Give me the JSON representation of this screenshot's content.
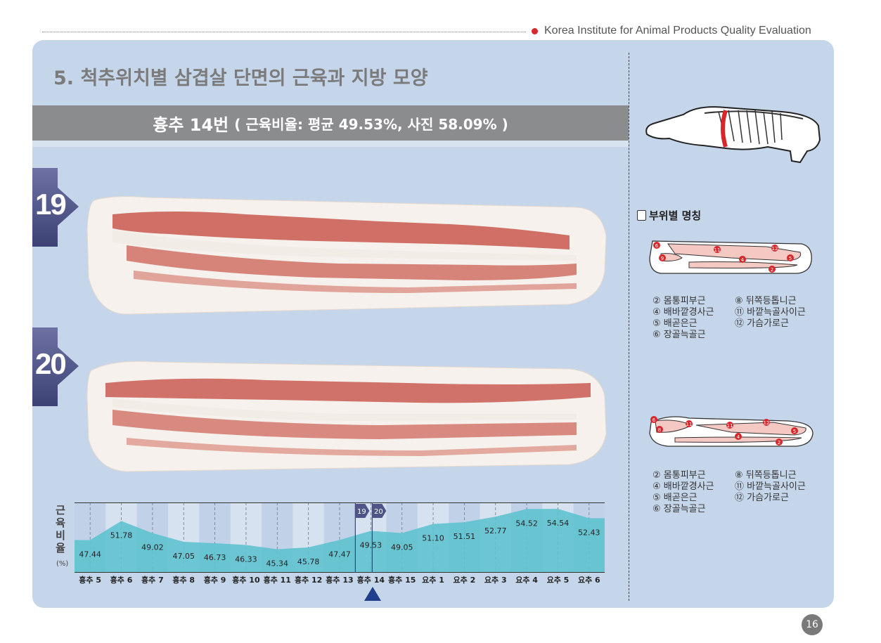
{
  "header": {
    "organization": "Korea Institute for Animal Products Quality Evaluation"
  },
  "title": "5. 척추위치별 삼겹살 단면의 근육과 지방 모양",
  "banner": {
    "main": "흉추 14번",
    "sub": "( 근육비율: 평균 49.53%, 사진 58.09% )"
  },
  "photos": [
    {
      "number": "19"
    },
    {
      "number": "20"
    }
  ],
  "chart_data": {
    "type": "area",
    "ylabel": "근육비율",
    "yunit": "(%)",
    "categories": [
      "흉추 5",
      "흉추 6",
      "흉추 7",
      "흉추 8",
      "흉추 9",
      "흉추 10",
      "흉추 11",
      "흉추 12",
      "흉추 13",
      "흉추 14",
      "흉추 15",
      "요추 1",
      "요추 2",
      "요추 3",
      "요추 4",
      "요추 5",
      "요추 6"
    ],
    "values": [
      47.44,
      51.78,
      49.02,
      47.05,
      46.73,
      46.33,
      45.34,
      45.78,
      47.47,
      49.53,
      49.05,
      51.1,
      51.51,
      52.77,
      54.52,
      54.54,
      52.43
    ],
    "value_labels": [
      "47.44",
      "51.78",
      "49.02",
      "47.05",
      "46.73",
      "46.33",
      "45.34",
      "45.78",
      "47.47",
      "49.53",
      "49.05",
      "51.10",
      "51.51",
      "52.77",
      "54.52",
      "54.54",
      "52.43"
    ],
    "ylim": [
      40,
      56
    ],
    "highlight_category": "흉추 14",
    "markers": [
      "19",
      "20"
    ],
    "fill_color": "#5fc2cf",
    "grid": true
  },
  "parts": {
    "title": "부위별 명칭",
    "legend": {
      "left": [
        "② 몸통피부근",
        "④ 배바깥경사근",
        "⑤ 배곧은근",
        "⑥ 장골늑골근"
      ],
      "right": [
        "⑧ 뒤쪽등톱니근",
        "⑪ 바깥늑골사이근",
        "⑫ 가슴가로근"
      ]
    },
    "section1_labels": [
      "6",
      "9",
      "11",
      "12",
      "4",
      "5",
      "2"
    ],
    "section2_labels": [
      "6",
      "8",
      "11",
      "11",
      "12",
      "4",
      "5",
      "2"
    ]
  },
  "colors": {
    "panel": "#c6d6ea",
    "banner": "#8a8c8e",
    "tab": "#4f5587",
    "accent": "#1f3f8c",
    "cut_line": "#d9262b"
  },
  "page_number": "16"
}
